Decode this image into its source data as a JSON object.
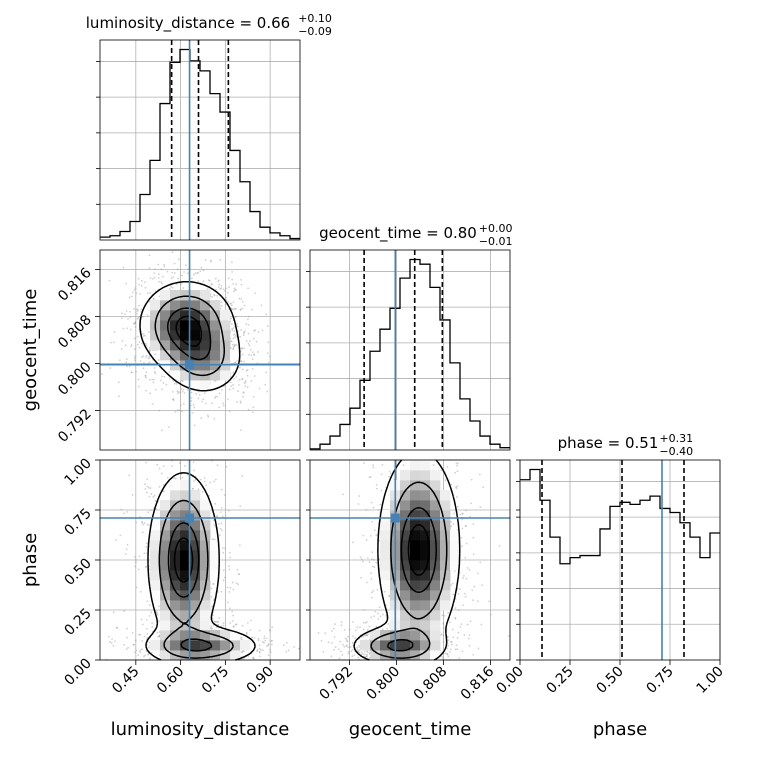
{
  "chart_data": {
    "type": "corner",
    "parameters": [
      "luminosity_distance",
      "geocent_time",
      "phase"
    ],
    "truth": {
      "luminosity_distance": 0.63,
      "geocent_time": 0.7998,
      "phase": 0.71
    },
    "truth_color": "#4682b4",
    "grid": true,
    "marginals": [
      {
        "parameter": "luminosity_distance",
        "title": {
          "main": "luminosity_distance = 0.66",
          "plus": "+0.10",
          "minus": "−0.09"
        },
        "range": [
          0.33,
          1.0
        ],
        "quantiles": [
          0.57,
          0.66,
          0.76
        ],
        "bin_edges": [
          0.33,
          0.3635,
          0.397,
          0.4305,
          0.464,
          0.4975,
          0.531,
          0.5645,
          0.598,
          0.6315,
          0.665,
          0.6985,
          0.732,
          0.7655,
          0.799,
          0.8325,
          0.866,
          0.8995,
          0.933,
          0.9665,
          1.0
        ],
        "counts": [
          2,
          3,
          6,
          13,
          32,
          56,
          96,
          125,
          134,
          126,
          119,
          103,
          90,
          63,
          41,
          20,
          9,
          5,
          3,
          1
        ]
      },
      {
        "parameter": "geocent_time",
        "title": {
          "main": "geocent_time = 0.80",
          "plus": "+0.00",
          "minus": "−0.01"
        },
        "range": [
          0.7853,
          0.8193
        ],
        "quantiles": [
          0.7945,
          0.8031,
          0.8078
        ],
        "bin_edges": [
          0.7853,
          0.787,
          0.7887,
          0.7904,
          0.7921,
          0.7938,
          0.7955,
          0.7972,
          0.7989,
          0.8006,
          0.8023,
          0.804,
          0.8057,
          0.8074,
          0.8091,
          0.8108,
          0.8125,
          0.8142,
          0.8159,
          0.8176,
          0.8193
        ],
        "counts": [
          1,
          5,
          12,
          22,
          36,
          60,
          85,
          104,
          122,
          148,
          164,
          160,
          140,
          112,
          75,
          44,
          25,
          12,
          5,
          2
        ]
      },
      {
        "parameter": "phase",
        "title": {
          "main": "phase = 0.51",
          "plus": "+0.31",
          "minus": "−0.40"
        },
        "range": [
          0.0,
          1.0
        ],
        "quantiles": [
          0.11,
          0.51,
          0.82
        ],
        "bin_edges": [
          0,
          0.05,
          0.1,
          0.15,
          0.2,
          0.25,
          0.3,
          0.35,
          0.4,
          0.45,
          0.5,
          0.55,
          0.6,
          0.65,
          0.7,
          0.75,
          0.8,
          0.85,
          0.9,
          0.95,
          1.0
        ],
        "counts": [
          88,
          93,
          78,
          60,
          47,
          50,
          51,
          51,
          64,
          75,
          77,
          76,
          78,
          80,
          74,
          72,
          67,
          60,
          50,
          62
        ]
      }
    ],
    "axes": {
      "luminosity_distance": {
        "ticks": [
          0.45,
          0.6,
          0.75,
          0.9
        ],
        "tick_labels": [
          "0.45",
          "0.60",
          "0.75",
          "0.90"
        ]
      },
      "geocent_time": {
        "ticks": [
          0.792,
          0.8,
          0.808,
          0.816
        ],
        "tick_labels": [
          "0.792",
          "0.800",
          "0.808",
          "0.816"
        ]
      },
      "phase": {
        "ticks": [
          0.0,
          0.25,
          0.5,
          0.75,
          1.0
        ],
        "tick_labels": [
          "0.00",
          "0.25",
          "0.50",
          "0.75",
          "1.00"
        ]
      }
    },
    "xlabels": [
      "luminosity_distance",
      "geocent_time",
      "phase"
    ],
    "ylabels": [
      "",
      "geocent_time",
      "phase"
    ],
    "joint": [
      {
        "x": "luminosity_distance",
        "y": "geocent_time",
        "density": [
          {
            "cx": 0.62,
            "cy": 0.8065,
            "sx": 0.08,
            "sy": 0.0038,
            "w": 1.0
          },
          {
            "cx": 0.68,
            "cy": 0.8005,
            "sx": 0.07,
            "sy": 0.0032,
            "w": 0.5
          }
        ]
      },
      {
        "x": "luminosity_distance",
        "y": "phase",
        "density": [
          {
            "cx": 0.61,
            "cy": 0.5,
            "sx": 0.06,
            "sy": 0.22,
            "w": 1.0
          },
          {
            "cx": 0.67,
            "cy": 0.07,
            "sx": 0.1,
            "sy": 0.05,
            "w": 0.7
          }
        ]
      },
      {
        "x": "geocent_time",
        "y": "phase",
        "density": [
          {
            "cx": 0.8038,
            "cy": 0.55,
            "sx": 0.0035,
            "sy": 0.25,
            "w": 1.0
          },
          {
            "cx": 0.8,
            "cy": 0.07,
            "sx": 0.004,
            "sy": 0.05,
            "w": 0.7
          }
        ]
      }
    ]
  }
}
